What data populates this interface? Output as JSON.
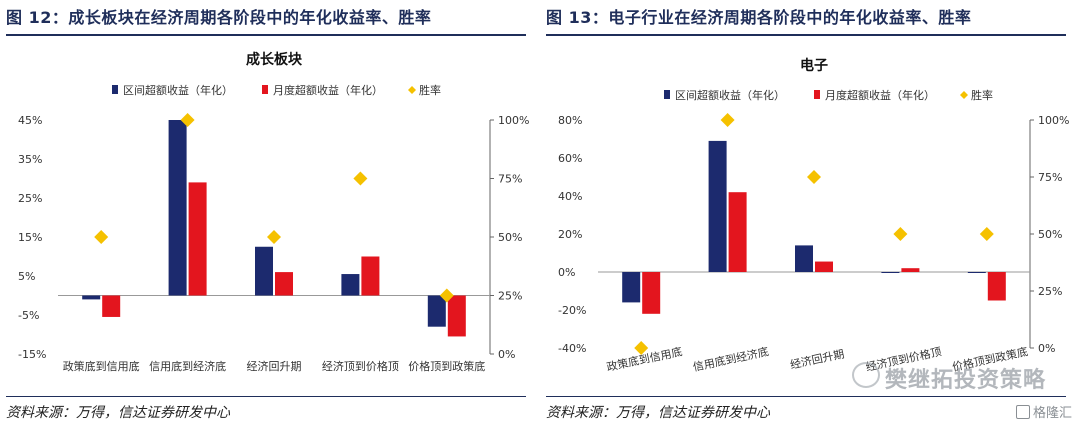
{
  "figures": [
    {
      "figure_title": "图 12：成长板块在经济周期各阶段中的年化收益率、胜率",
      "source": "资料来源：万得，信达证券研发中心"
    },
    {
      "figure_title": "图 13：电子行业在经济周期各阶段中的年化收益率、胜率",
      "source": "资料来源：万得，信达证券研发中心"
    }
  ],
  "watermark": "樊继拓投资策略",
  "brand": "格隆汇",
  "colors": {
    "navy": "#1c2a6e",
    "red": "#e3151e",
    "gold": "#f5c100",
    "title": "#1f2e5a"
  },
  "chart_data": [
    {
      "type": "bar",
      "title": "成长板块",
      "categories": [
        "政策底到信用底",
        "信用底到经济底",
        "经济回升期",
        "经济顶到价格顶",
        "价格顶到政策底"
      ],
      "series": [
        {
          "name": "区间超额收益（年化）",
          "axis": "left",
          "color": "#1c2a6e",
          "values": [
            -1,
            45,
            12.5,
            5.5,
            -8
          ]
        },
        {
          "name": "月度超额收益（年化）",
          "axis": "left",
          "color": "#e3151e",
          "values": [
            -5.5,
            29,
            6,
            10,
            -10.5
          ]
        },
        {
          "name": "胜率",
          "axis": "right",
          "color": "#f5c100",
          "marker": "diamond",
          "values": [
            50,
            100,
            50,
            75,
            25
          ]
        }
      ],
      "left_axis": {
        "ticks": [
          45,
          35,
          25,
          15,
          5,
          -5,
          -15
        ],
        "tick_labels": [
          "45%",
          "35%",
          "25%",
          "15%",
          "5%",
          "-5%",
          "-15%"
        ],
        "range": [
          -15,
          45
        ]
      },
      "right_axis": {
        "ticks": [
          100,
          75,
          50,
          25,
          0
        ],
        "tick_labels": [
          "100%",
          "75%",
          "50%",
          "25%",
          "0%"
        ],
        "range": [
          0,
          100
        ]
      },
      "legend_position": "top"
    },
    {
      "type": "bar",
      "title": "电子",
      "categories": [
        "政策底到信用底",
        "信用底到经济底",
        "经济回升期",
        "经济顶到价格顶",
        "价格顶到政策底"
      ],
      "series": [
        {
          "name": "区间超额收益（年化）",
          "axis": "left",
          "color": "#1c2a6e",
          "values": [
            -16,
            69,
            14,
            -0.5,
            -0.5
          ]
        },
        {
          "name": "月度超额收益（年化）",
          "axis": "left",
          "color": "#e3151e",
          "values": [
            -22,
            42,
            5.5,
            2,
            -15
          ]
        },
        {
          "name": "胜率",
          "axis": "right",
          "color": "#f5c100",
          "marker": "diamond",
          "values": [
            0,
            100,
            75,
            50,
            50
          ]
        }
      ],
      "left_axis": {
        "ticks": [
          80,
          60,
          40,
          20,
          0,
          -20,
          -40
        ],
        "tick_labels": [
          "80%",
          "60%",
          "40%",
          "20%",
          "0%",
          "-20%",
          "-40%"
        ],
        "range": [
          -40,
          80
        ]
      },
      "right_axis": {
        "ticks": [
          100,
          75,
          50,
          25,
          0
        ],
        "tick_labels": [
          "100%",
          "75%",
          "50%",
          "25%",
          "0%"
        ],
        "range": [
          0,
          100
        ]
      },
      "legend_position": "top"
    }
  ]
}
